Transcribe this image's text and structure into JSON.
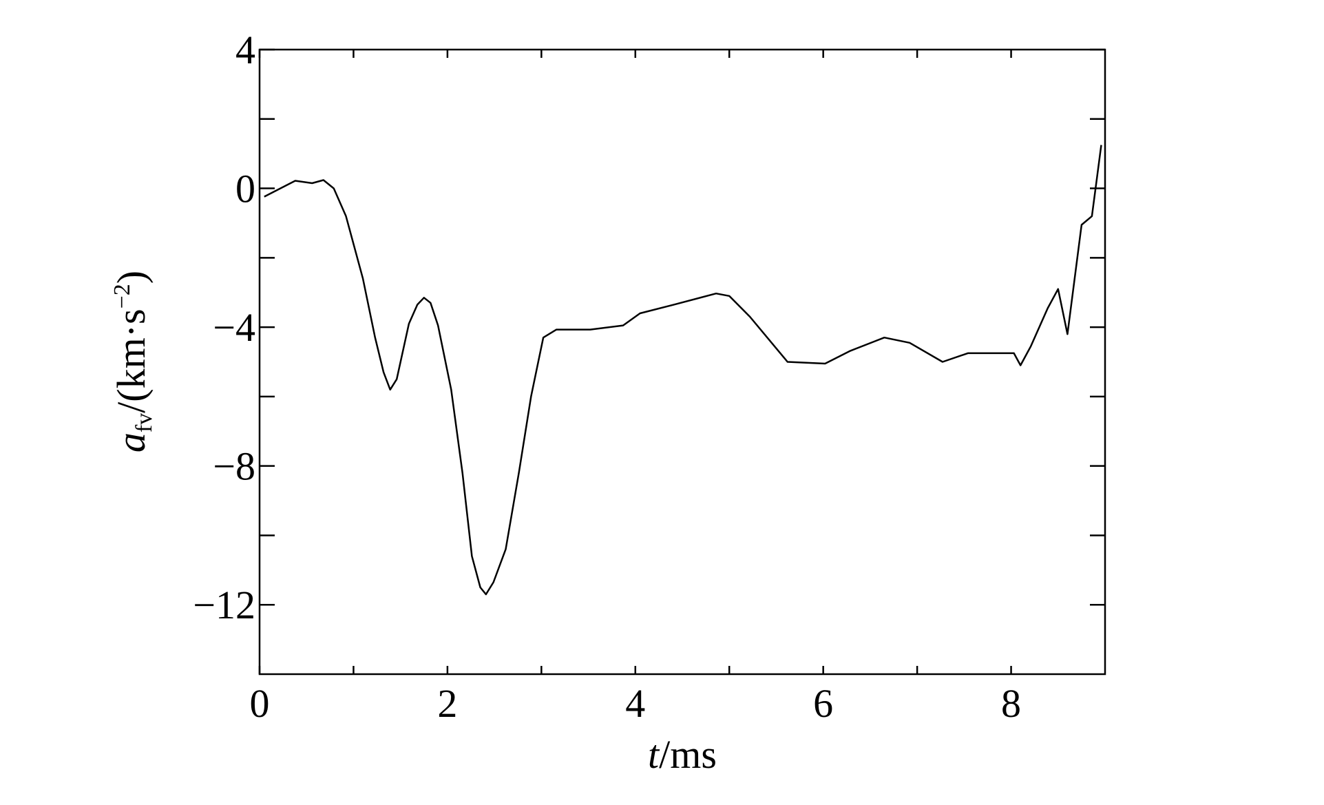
{
  "chart_data": {
    "type": "line",
    "title": "",
    "xlabel": {
      "italic": "t",
      "rest": "/ms"
    },
    "ylabel": {
      "italic": "a",
      "sub": "fv",
      "rest": "/(km·s",
      "sup": "−2",
      "close": ")"
    },
    "xlim": [
      0,
      9
    ],
    "ylim": [
      -14,
      4
    ],
    "xticks": [
      0,
      2,
      4,
      6,
      8
    ],
    "xtick_labels": [
      "0",
      "2",
      "4",
      "6",
      "8"
    ],
    "xminor": [
      1,
      3,
      5,
      7
    ],
    "yticks": [
      4,
      0,
      -4,
      -8,
      -12
    ],
    "ytick_labels": [
      "4",
      "0",
      "−4",
      "−8",
      "−12"
    ],
    "yminor": [
      2,
      -2,
      -6,
      -10
    ],
    "grid": false,
    "line_color": "#000000",
    "series": [
      {
        "x": [
          0.05,
          0.38,
          0.56,
          0.68,
          0.79,
          0.92,
          1.1,
          1.23,
          1.32,
          1.39,
          1.46,
          1.59,
          1.68,
          1.75,
          1.82,
          1.9,
          2.04,
          2.16,
          2.26,
          2.35,
          2.41,
          2.49,
          2.62,
          2.76,
          2.89,
          3.02,
          3.16,
          3.52,
          3.87,
          4.05,
          4.41,
          4.86,
          5.0,
          5.22,
          5.62,
          6.02,
          6.29,
          6.65,
          6.92,
          7.27,
          7.54,
          8.03,
          8.1,
          8.21,
          8.39,
          8.5,
          8.6,
          8.75,
          8.86,
          8.96
        ],
        "y": [
          -0.24,
          0.22,
          0.15,
          0.24,
          0,
          -0.8,
          -2.6,
          -4.3,
          -5.3,
          -5.8,
          -5.5,
          -3.9,
          -3.35,
          -3.15,
          -3.3,
          -3.95,
          -5.8,
          -8.2,
          -10.6,
          -11.5,
          -11.7,
          -11.35,
          -10.4,
          -8.2,
          -6.0,
          -4.3,
          -4.07,
          -4.07,
          -3.95,
          -3.6,
          -3.35,
          -3.03,
          -3.1,
          -3.7,
          -5.0,
          -5.05,
          -4.68,
          -4.3,
          -4.45,
          -5.0,
          -4.75,
          -4.75,
          -5.1,
          -4.55,
          -3.45,
          -2.9,
          -4.2,
          -1.05,
          -0.8,
          1.25
        ]
      }
    ]
  }
}
